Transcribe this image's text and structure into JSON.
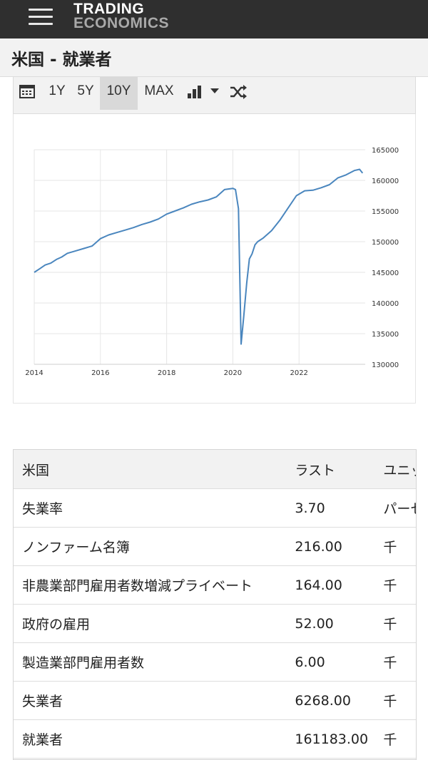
{
  "header": {
    "logo_line1": "TRADING",
    "logo_line2": "ECONOMICS",
    "menu_icon": "hamburger-menu-icon"
  },
  "page": {
    "title": "米国 - 就業者"
  },
  "toolbar": {
    "calendar_icon": "calendar-icon",
    "ranges": [
      "1Y",
      "5Y",
      "10Y",
      "MAX"
    ],
    "active_range": "10Y",
    "chart_type_icon": "bar-chart-icon",
    "dropdown_icon": "caret-down-icon",
    "compare_icon": "shuffle-icon"
  },
  "chart_data": {
    "type": "line",
    "title": "",
    "xlabel": "",
    "ylabel": "",
    "x_ticks": [
      "2014",
      "2016",
      "2018",
      "2020",
      "2022"
    ],
    "y_ticks": [
      130000,
      135000,
      140000,
      145000,
      150000,
      155000,
      160000,
      165000
    ],
    "ylim": [
      130000,
      165000
    ],
    "xlim": [
      2014.0,
      2024.0
    ],
    "y_axis_position": "right",
    "grid": true,
    "line_color": "#4a86be",
    "series": [
      {
        "x": [
          2014.0,
          2014.17,
          2014.33,
          2014.5,
          2014.67,
          2014.83,
          2015.0,
          2015.25,
          2015.5,
          2015.75,
          2016.0,
          2016.25,
          2016.5,
          2016.75,
          2017.0,
          2017.25,
          2017.5,
          2017.75,
          2018.0,
          2018.25,
          2018.5,
          2018.75,
          2019.0,
          2019.25,
          2019.5,
          2019.75,
          2020.0,
          2020.08,
          2020.17,
          2020.25,
          2020.33,
          2020.42,
          2020.5,
          2020.58,
          2020.67,
          2020.75,
          2020.92,
          2021.17,
          2021.42,
          2021.67,
          2021.92,
          2022.17,
          2022.42,
          2022.67,
          2022.92,
          2023.17,
          2023.42,
          2023.67,
          2023.83,
          2023.92
        ],
        "y": [
          145000,
          145600,
          146200,
          146500,
          147100,
          147500,
          148100,
          148500,
          148900,
          149300,
          150500,
          151100,
          151500,
          151900,
          152300,
          152800,
          153200,
          153700,
          154500,
          155000,
          155500,
          156100,
          156500,
          156800,
          157300,
          158500,
          158700,
          158500,
          155400,
          133300,
          137800,
          143300,
          147200,
          148000,
          149500,
          150000,
          150600,
          151800,
          153500,
          155500,
          157500,
          158300,
          158400,
          158800,
          159300,
          160400,
          160900,
          161600,
          161800,
          161183
        ]
      }
    ]
  },
  "table": {
    "headers": [
      "米国",
      "ラスト",
      "ユニッ"
    ],
    "rows": [
      {
        "name": "失業率",
        "last": "3.70",
        "unit": "パーセ"
      },
      {
        "name": "ノンファーム名簿",
        "last": "216.00",
        "unit": "千"
      },
      {
        "name": "非農業部門雇用者数増減プライベート",
        "last": "164.00",
        "unit": "千"
      },
      {
        "name": "政府の雇用",
        "last": "52.00",
        "unit": "千"
      },
      {
        "name": "製造業部門雇用者数",
        "last": "6.00",
        "unit": "千"
      },
      {
        "name": "失業者",
        "last": "6268.00",
        "unit": "千"
      },
      {
        "name": "就業者",
        "last": "161183.00",
        "unit": "千"
      }
    ]
  }
}
